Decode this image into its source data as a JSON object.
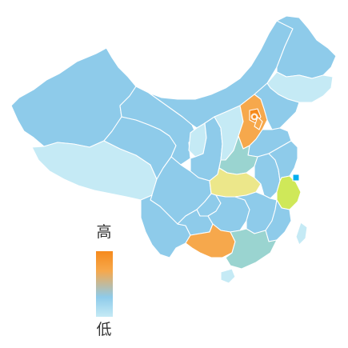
{
  "legend": {
    "high": "高",
    "low": "低"
  },
  "colors": {
    "lowest": "#c5eaf5",
    "low": "#8ecbea",
    "midlow": "#9ad4d0",
    "mid": "#ece78a",
    "midhigh": "#cfe859",
    "high": "#f6a84c",
    "highest": "#f68a1c",
    "marker": "#00aeef"
  },
  "regions": [
    {
      "name": "xinjiang",
      "level": "low"
    },
    {
      "name": "xizang",
      "level": "lowest"
    },
    {
      "name": "qinghai",
      "level": "low"
    },
    {
      "name": "gansu",
      "level": "low"
    },
    {
      "name": "neimenggu",
      "level": "low"
    },
    {
      "name": "ningxia",
      "level": "lowest"
    },
    {
      "name": "shaanxi",
      "level": "low"
    },
    {
      "name": "shanxi",
      "level": "lowest"
    },
    {
      "name": "sichuan",
      "level": "low"
    },
    {
      "name": "yunnan",
      "level": "low"
    },
    {
      "name": "heilongjiang",
      "level": "low"
    },
    {
      "name": "jilin",
      "level": "lowest"
    },
    {
      "name": "liaoning",
      "level": "low"
    },
    {
      "name": "hebei",
      "level": "high"
    },
    {
      "name": "beijing",
      "level": "highest"
    },
    {
      "name": "tianjin",
      "level": "high"
    },
    {
      "name": "shandong",
      "level": "low"
    },
    {
      "name": "henan",
      "level": "midlow"
    },
    {
      "name": "hubei",
      "level": "mid"
    },
    {
      "name": "anhui",
      "level": "low"
    },
    {
      "name": "jiangsu",
      "level": "low"
    },
    {
      "name": "shanghai",
      "level": "marker"
    },
    {
      "name": "zhejiang",
      "level": "midhigh"
    },
    {
      "name": "chongqing",
      "level": "low"
    },
    {
      "name": "guizhou",
      "level": "low"
    },
    {
      "name": "hunan",
      "level": "low"
    },
    {
      "name": "jiangxi",
      "level": "low"
    },
    {
      "name": "fujian",
      "level": "low"
    },
    {
      "name": "guangxi",
      "level": "high"
    },
    {
      "name": "guangdong",
      "level": "midlow"
    },
    {
      "name": "hainan",
      "level": "lowest"
    },
    {
      "name": "taiwan",
      "level": "lowest"
    }
  ]
}
